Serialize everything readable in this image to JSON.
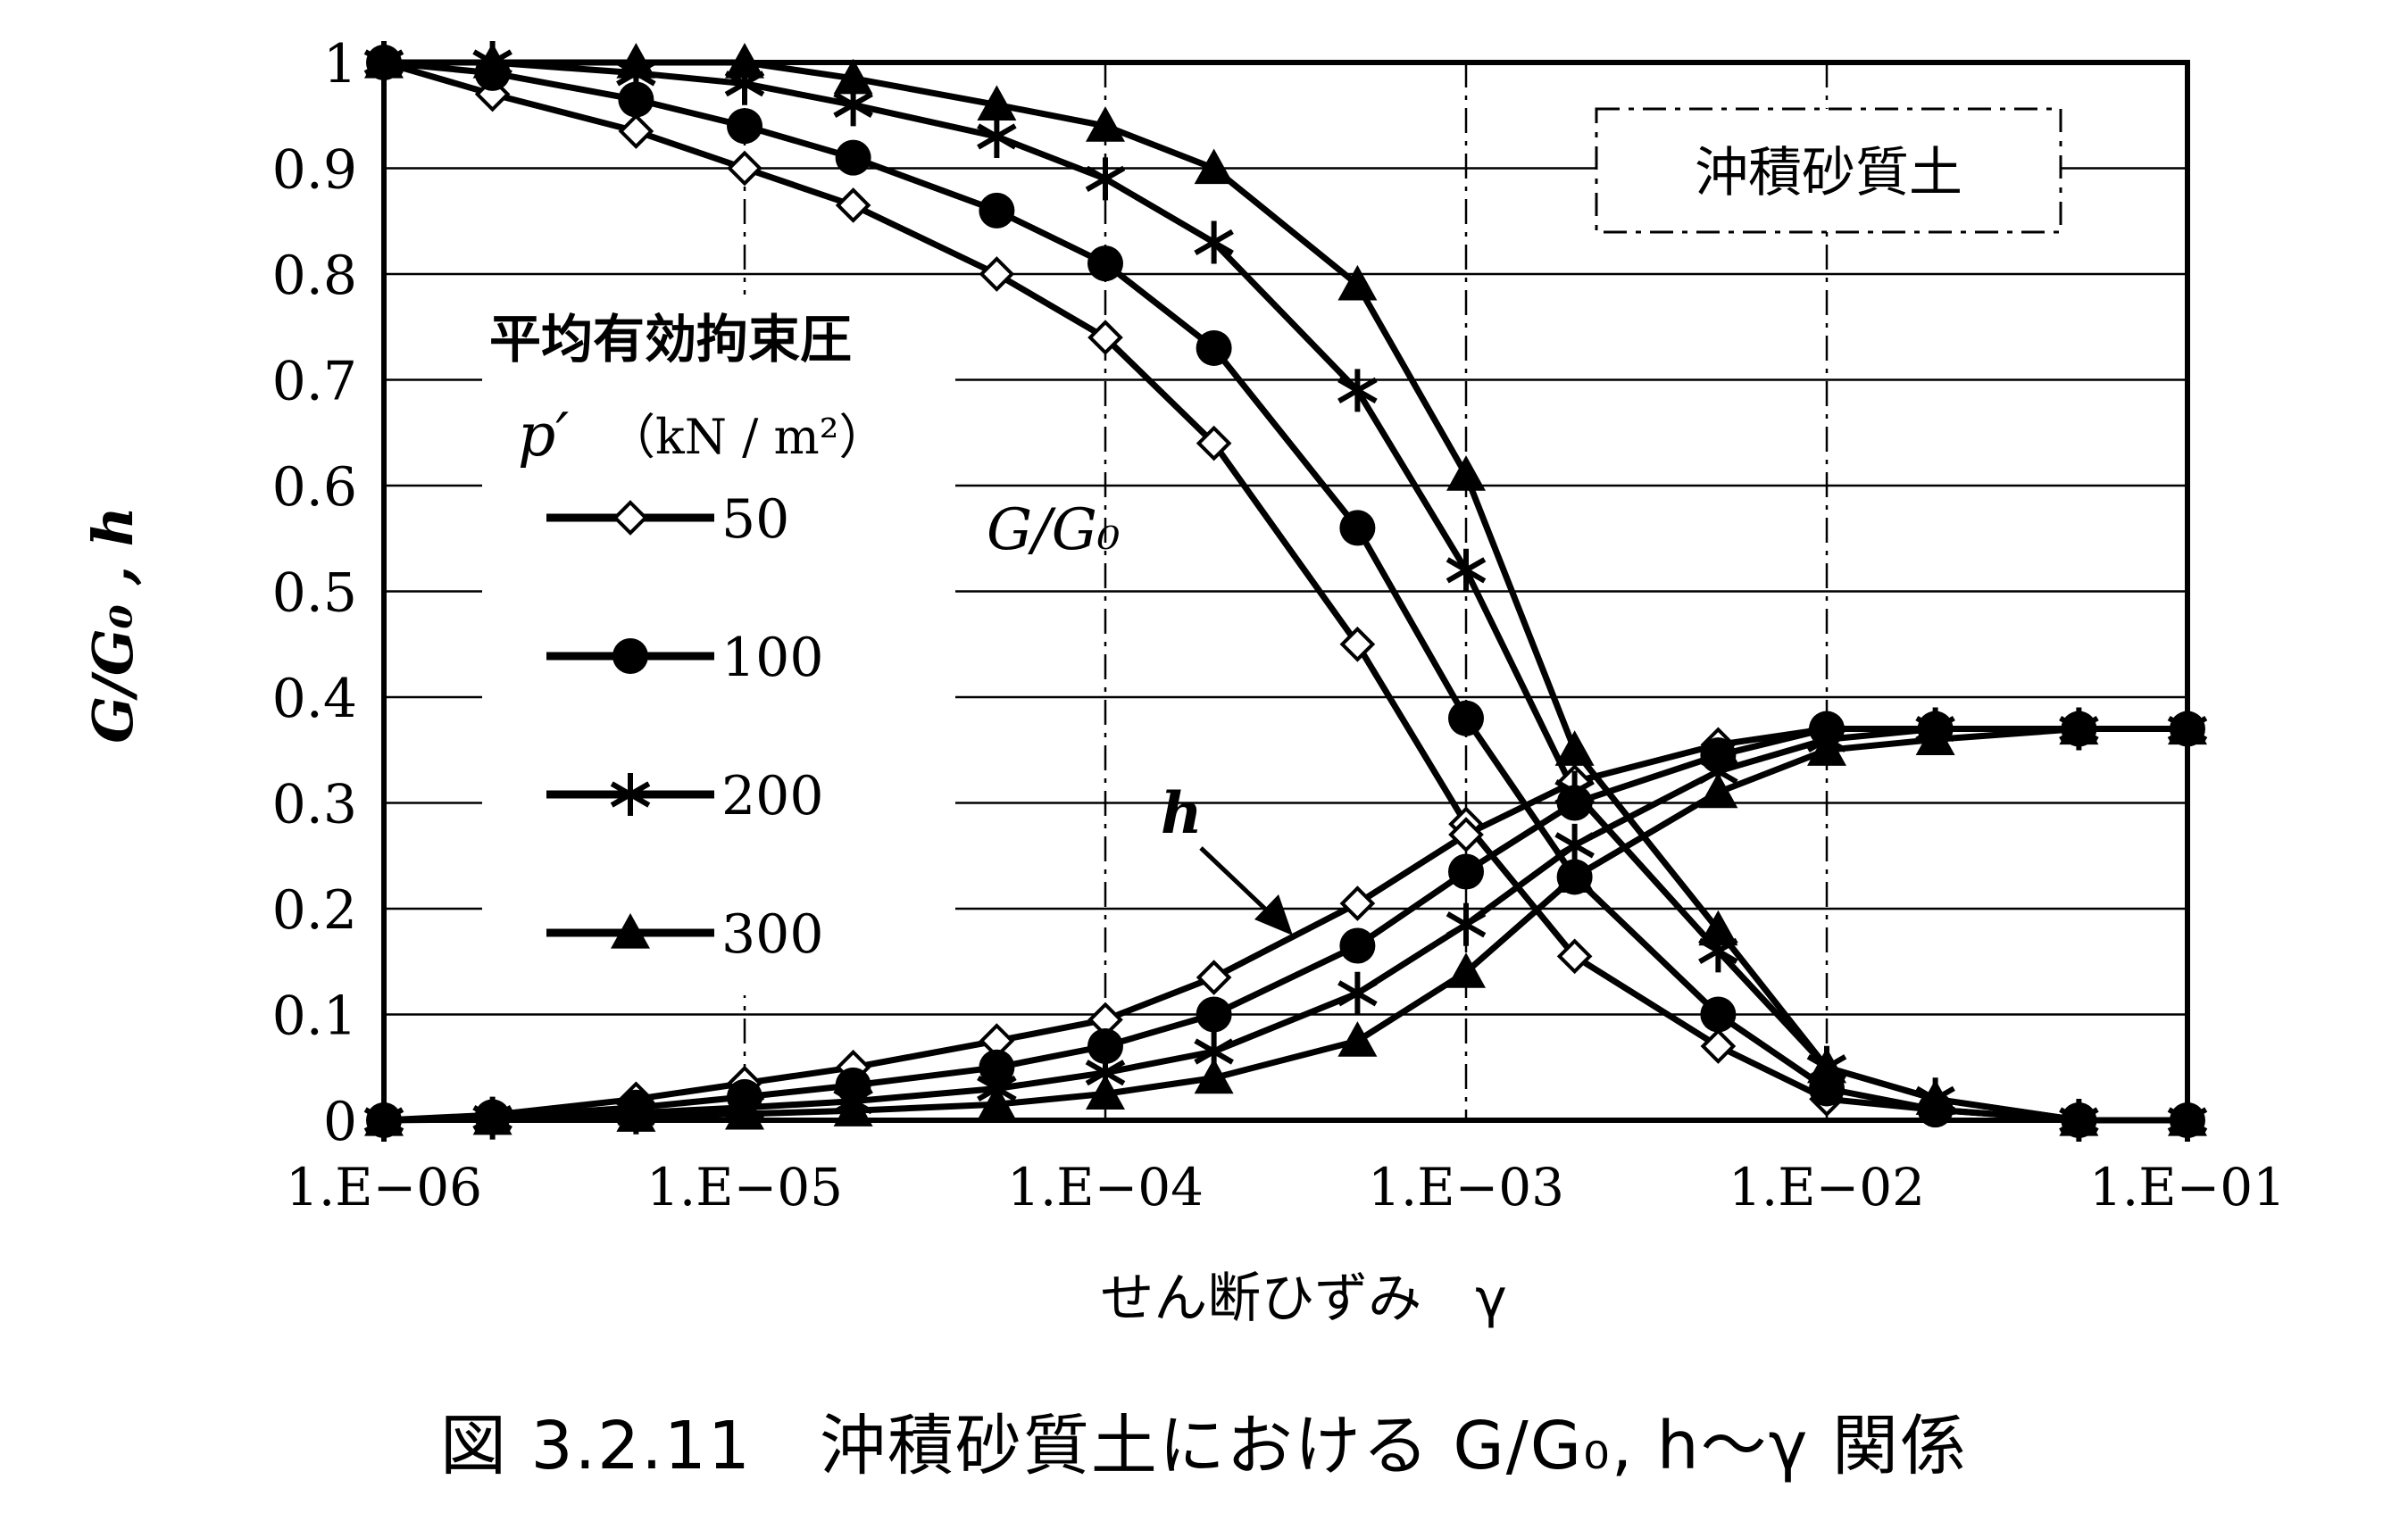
{
  "caption": "図 3.2.11　沖積砂質土における G/G₀, h〜γ 関係",
  "chart_data": {
    "type": "line",
    "title": "沖積砂質土",
    "xlabel": "せん断ひずみ　γ",
    "ylabel": "G/G₀ , h",
    "xscale": "log",
    "xlim": [
      1e-06,
      0.1
    ],
    "ylim": [
      0,
      1
    ],
    "xticks": [
      1e-06,
      1e-05,
      0.0001,
      0.001,
      0.01,
      0.1
    ],
    "xtick_labels": [
      "1.E−06",
      "1.E−05",
      "1.E−04",
      "1.E−03",
      "1.E−02",
      "1.E−01"
    ],
    "yticks": [
      0,
      0.1,
      0.2,
      0.3,
      0.4,
      0.5,
      0.6,
      0.7,
      0.8,
      0.9,
      1
    ],
    "ytick_labels": [
      "0",
      "0.1",
      "0.2",
      "0.3",
      "0.4",
      "0.5",
      "0.6",
      "0.7",
      "0.8",
      "0.9",
      "1"
    ],
    "grid": true,
    "legend": {
      "title_line1": "平均有効拘束圧",
      "title_p": "p′",
      "title_unit": "（kN / m²）",
      "placement": "left",
      "entries": [
        "50",
        "100",
        "200",
        "300"
      ]
    },
    "annotations": {
      "g_label": "G/G₀",
      "h_label": "h"
    },
    "x": [
      1e-06,
      2e-06,
      5e-06,
      1e-05,
      2e-05,
      5e-05,
      0.0001,
      0.0002,
      0.0005,
      0.001,
      0.002,
      0.005,
      0.01,
      0.02,
      0.05,
      0.1
    ],
    "series": [
      {
        "name": "50",
        "marker": "diamond",
        "g": [
          1.0,
          0.97,
          0.935,
          0.9,
          0.865,
          0.8,
          0.74,
          0.64,
          0.45,
          0.28,
          0.155,
          0.07,
          0.02,
          0.01,
          0.0,
          0.0
        ],
        "h": [
          0.0,
          0.005,
          0.02,
          0.035,
          0.05,
          0.075,
          0.095,
          0.135,
          0.205,
          0.27,
          0.32,
          0.355,
          0.37,
          0.37,
          0.37,
          0.37
        ]
      },
      {
        "name": "100",
        "marker": "circle",
        "g": [
          1.0,
          0.99,
          0.965,
          0.94,
          0.91,
          0.86,
          0.81,
          0.73,
          0.56,
          0.38,
          0.23,
          0.1,
          0.03,
          0.01,
          0.0,
          0.0
        ],
        "h": [
          0.0,
          0.003,
          0.012,
          0.022,
          0.033,
          0.05,
          0.07,
          0.1,
          0.165,
          0.235,
          0.3,
          0.345,
          0.37,
          0.37,
          0.37,
          0.37
        ]
      },
      {
        "name": "200",
        "marker": "star",
        "g": [
          1.0,
          1.0,
          0.99,
          0.98,
          0.96,
          0.93,
          0.89,
          0.83,
          0.69,
          0.52,
          0.31,
          0.16,
          0.05,
          0.02,
          0.0,
          0.0
        ],
        "h": [
          0.0,
          0.002,
          0.007,
          0.012,
          0.018,
          0.03,
          0.045,
          0.065,
          0.12,
          0.185,
          0.26,
          0.33,
          0.36,
          0.37,
          0.37,
          0.37
        ]
      },
      {
        "name": "300",
        "marker": "triangle",
        "g": [
          1.0,
          1.0,
          1.0,
          1.0,
          0.985,
          0.96,
          0.94,
          0.9,
          0.79,
          0.61,
          0.35,
          0.18,
          0.05,
          0.02,
          0.0,
          0.0
        ],
        "h": [
          0.0,
          0.001,
          0.004,
          0.006,
          0.009,
          0.015,
          0.025,
          0.04,
          0.075,
          0.14,
          0.23,
          0.31,
          0.35,
          0.36,
          0.37,
          0.37
        ]
      }
    ]
  }
}
